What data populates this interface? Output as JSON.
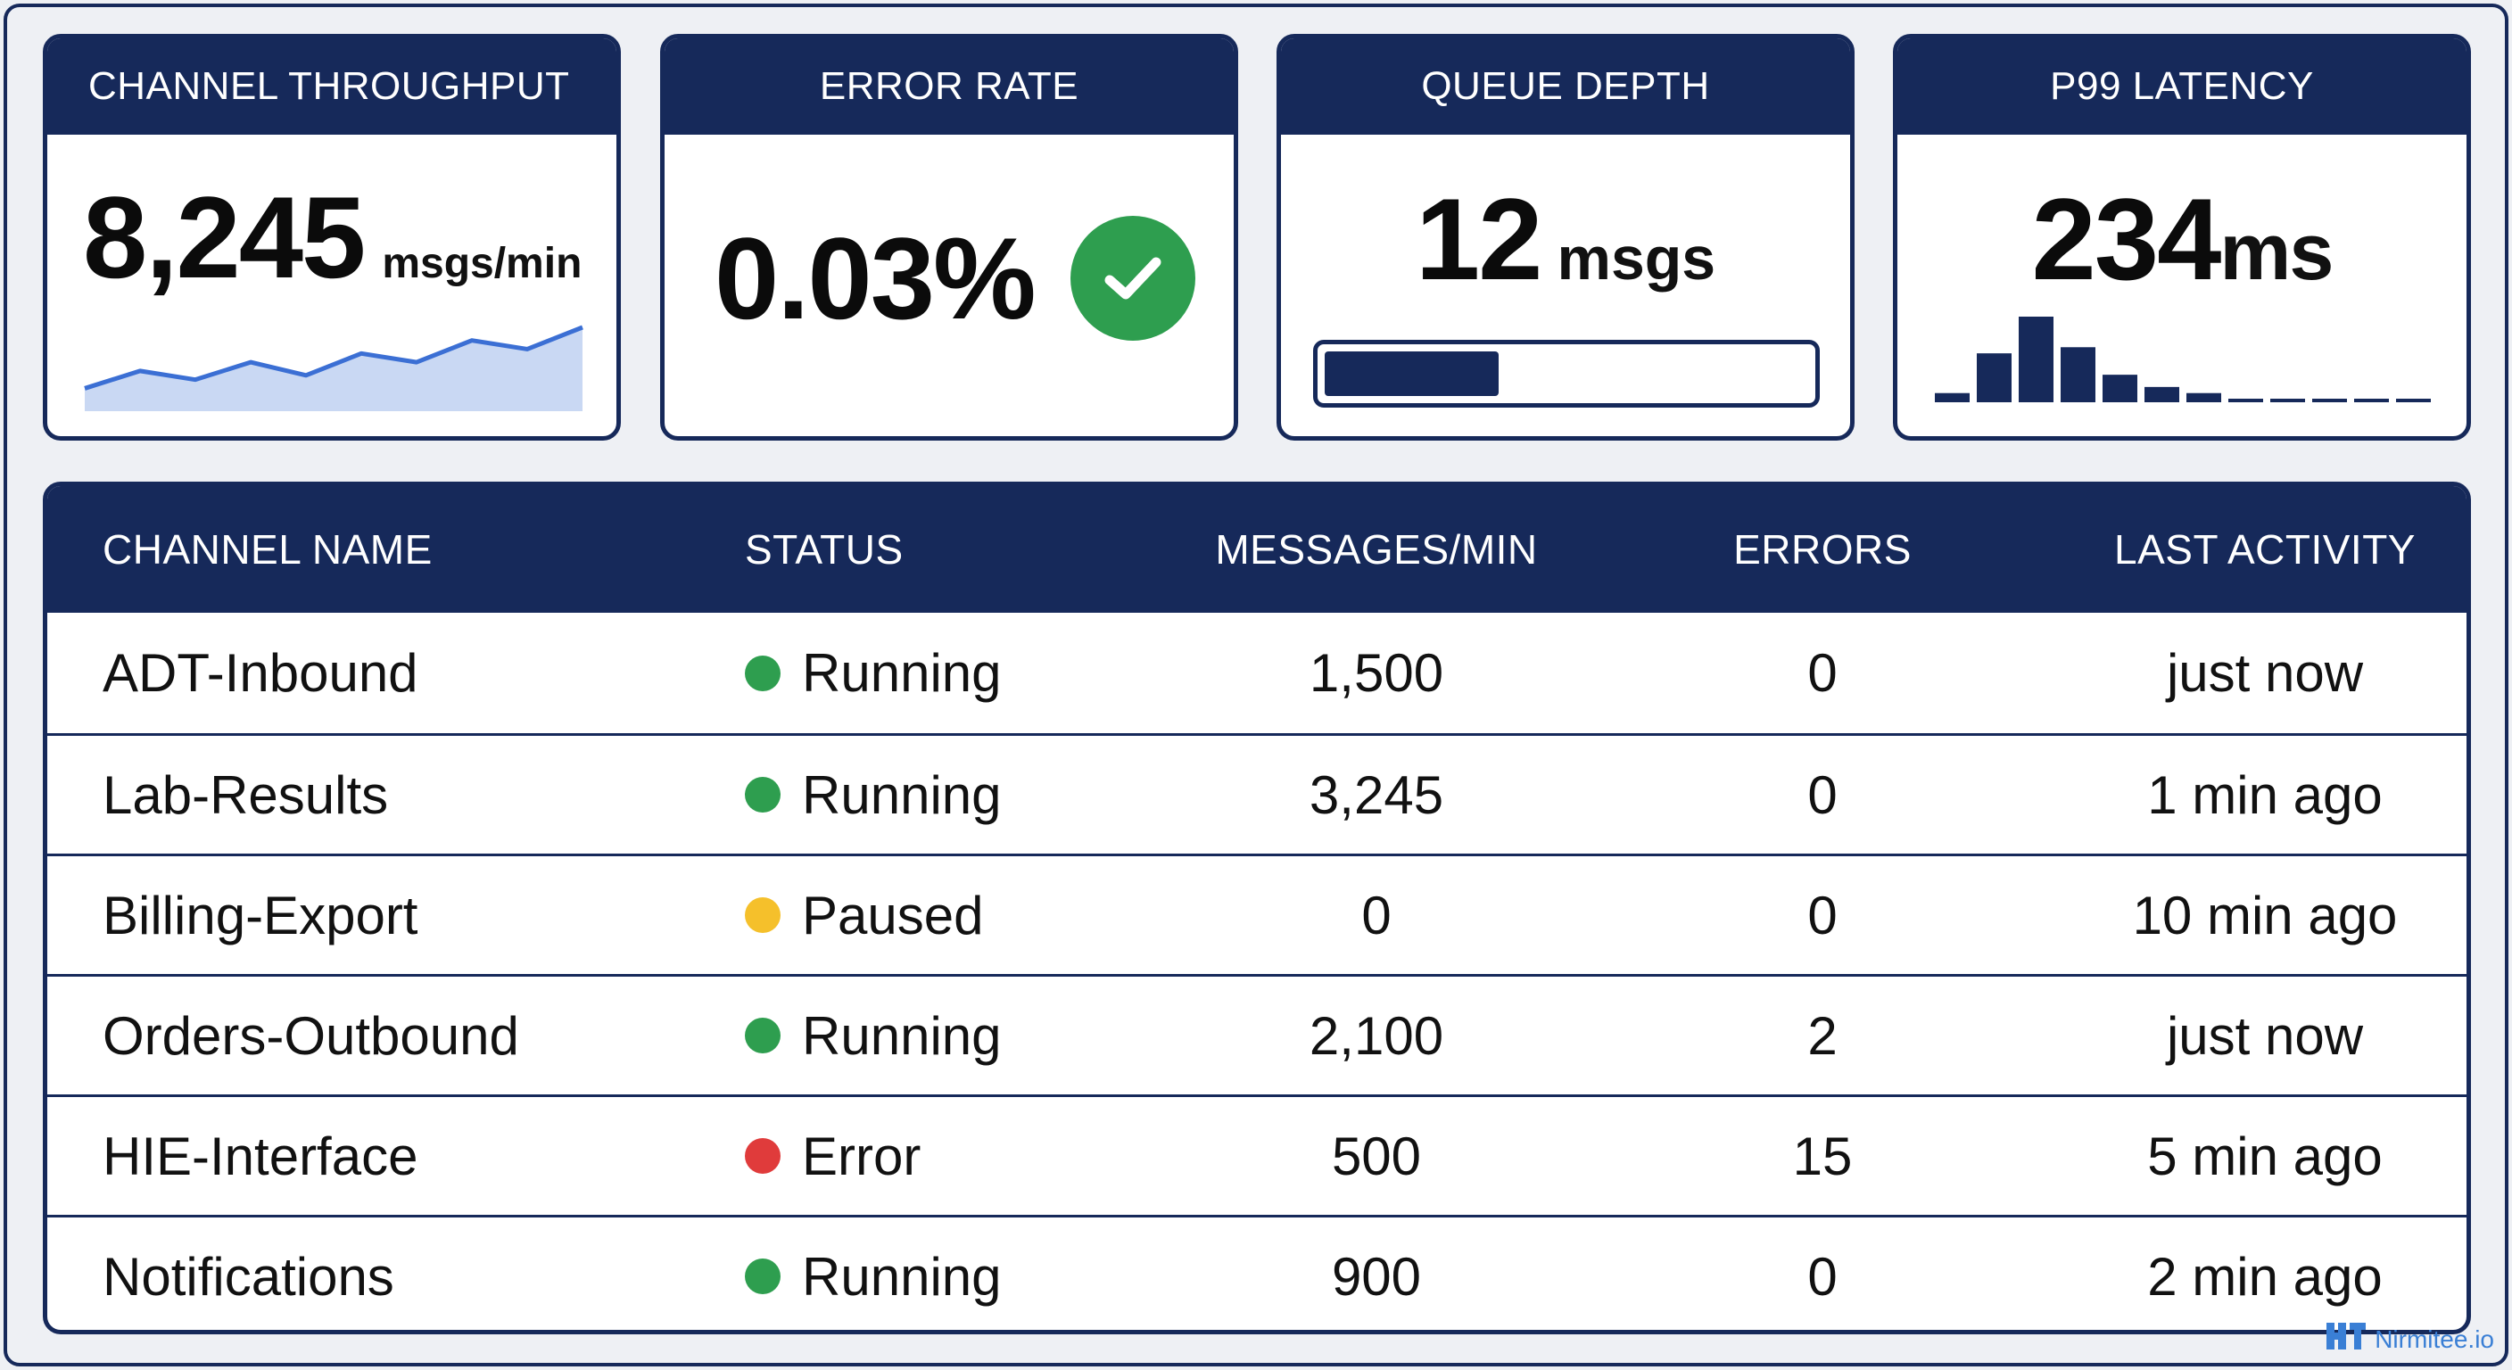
{
  "cards": {
    "throughput": {
      "title": "CHANNEL THROUGHPUT",
      "value": "8,245",
      "unit": "msgs/min",
      "sparkline": [
        2,
        4,
        3,
        5,
        3.5,
        6,
        5,
        7.5,
        6.5,
        9
      ]
    },
    "error_rate": {
      "title": "ERROR RATE",
      "value": "0.03%",
      "status_icon": "check-icon",
      "status_color": "#2e9e4f"
    },
    "queue_depth": {
      "title": "QUEUE DEPTH",
      "value": "12",
      "unit": "msgs",
      "fill_fraction": 0.36
    },
    "p99_latency": {
      "title": "P99 LATENCY",
      "value": "234",
      "unit": "ms",
      "histogram": [
        3,
        16,
        28,
        18,
        9,
        5,
        3,
        1,
        1,
        1,
        1,
        1
      ]
    }
  },
  "table": {
    "headers": [
      "CHANNEL NAME",
      "STATUS",
      "MESSAGES/MIN",
      "ERRORS",
      "LAST ACTIVITY"
    ],
    "rows": [
      {
        "name": "ADT-Inbound",
        "status": "Running",
        "status_color": "#2e9e4f",
        "messages": "1,500",
        "errors": "0",
        "last": "just now"
      },
      {
        "name": "Lab-Results",
        "status": "Running",
        "status_color": "#2e9e4f",
        "messages": "3,245",
        "errors": "0",
        "last": "1 min ago"
      },
      {
        "name": "Billing-Export",
        "status": "Paused",
        "status_color": "#f5c02b",
        "messages": "0",
        "errors": "0",
        "last": "10 min ago"
      },
      {
        "name": "Orders-Outbound",
        "status": "Running",
        "status_color": "#2e9e4f",
        "messages": "2,100",
        "errors": "2",
        "last": "just now"
      },
      {
        "name": "HIE-Interface",
        "status": "Error",
        "status_color": "#e03b3b",
        "messages": "500",
        "errors": "15",
        "last": "5 min ago"
      },
      {
        "name": "Notifications",
        "status": "Running",
        "status_color": "#2e9e4f",
        "messages": "900",
        "errors": "0",
        "last": "2 min ago"
      }
    ]
  },
  "watermark": {
    "text": "Nirmitee.io"
  },
  "colors": {
    "navy": "#16295a",
    "sparkline": "#3b6fd4"
  }
}
